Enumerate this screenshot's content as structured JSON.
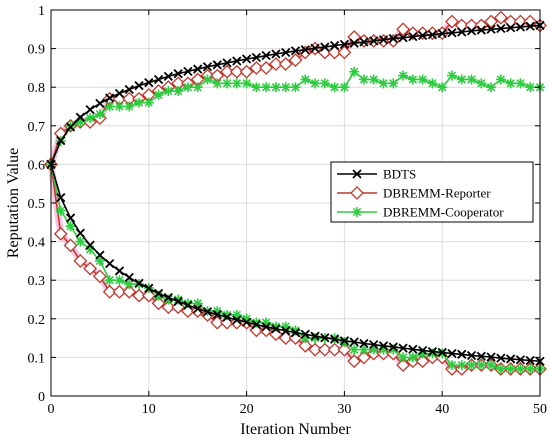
{
  "chart_data": {
    "type": "line",
    "xlabel": "Iteration Number",
    "ylabel": "Reputation Value",
    "xlim": [
      0,
      50
    ],
    "ylim": [
      0,
      1
    ],
    "x_ticks": [
      0,
      10,
      20,
      30,
      40,
      50
    ],
    "y_ticks": [
      0,
      0.1,
      0.2,
      0.3,
      0.4,
      0.5,
      0.6,
      0.7,
      0.8,
      0.9,
      1
    ],
    "grid": true,
    "legend_position": "center-right",
    "series": [
      {
        "name": "BDTS",
        "color": "#000000",
        "marker": "x",
        "x": [
          0,
          1,
          2,
          3,
          4,
          5,
          6,
          7,
          8,
          9,
          10,
          11,
          12,
          13,
          14,
          15,
          16,
          17,
          18,
          19,
          20,
          21,
          22,
          23,
          24,
          25,
          26,
          27,
          28,
          29,
          30,
          31,
          32,
          33,
          34,
          35,
          36,
          37,
          38,
          39,
          40,
          41,
          42,
          43,
          44,
          45,
          46,
          47,
          48,
          49,
          50
        ],
        "y_upper": [
          0.6,
          0.662,
          0.697,
          0.722,
          0.742,
          0.758,
          0.772,
          0.784,
          0.794,
          0.804,
          0.812,
          0.82,
          0.828,
          0.835,
          0.841,
          0.847,
          0.853,
          0.858,
          0.863,
          0.868,
          0.873,
          0.877,
          0.882,
          0.886,
          0.89,
          0.894,
          0.897,
          0.901,
          0.904,
          0.908,
          0.911,
          0.914,
          0.917,
          0.92,
          0.923,
          0.926,
          0.928,
          0.931,
          0.934,
          0.936,
          0.939,
          0.941,
          0.943,
          0.946,
          0.948,
          0.95,
          0.952,
          0.954,
          0.956,
          0.958,
          0.96
        ],
        "y_lower": [
          0.6,
          0.514,
          0.461,
          0.422,
          0.391,
          0.365,
          0.343,
          0.324,
          0.307,
          0.292,
          0.279,
          0.266,
          0.255,
          0.245,
          0.235,
          0.226,
          0.218,
          0.211,
          0.204,
          0.197,
          0.191,
          0.185,
          0.179,
          0.174,
          0.169,
          0.164,
          0.16,
          0.155,
          0.151,
          0.147,
          0.143,
          0.14,
          0.136,
          0.133,
          0.13,
          0.127,
          0.124,
          0.121,
          0.118,
          0.115,
          0.113,
          0.11,
          0.108,
          0.105,
          0.103,
          0.101,
          0.098,
          0.096,
          0.094,
          0.092,
          0.09
        ]
      },
      {
        "name": "DBREMM-Reporter",
        "color": "#c0392b",
        "marker": "diamond",
        "x": [
          0,
          1,
          2,
          3,
          4,
          5,
          6,
          7,
          8,
          9,
          10,
          11,
          12,
          13,
          14,
          15,
          16,
          17,
          18,
          19,
          20,
          21,
          22,
          23,
          24,
          25,
          26,
          27,
          28,
          29,
          30,
          31,
          32,
          33,
          34,
          35,
          36,
          37,
          38,
          39,
          40,
          41,
          42,
          43,
          44,
          45,
          46,
          47,
          48,
          49,
          50
        ],
        "y_upper": [
          0.6,
          0.68,
          0.7,
          0.71,
          0.71,
          0.72,
          0.77,
          0.77,
          0.77,
          0.77,
          0.78,
          0.79,
          0.8,
          0.81,
          0.81,
          0.82,
          0.83,
          0.83,
          0.84,
          0.84,
          0.84,
          0.85,
          0.85,
          0.86,
          0.86,
          0.87,
          0.89,
          0.9,
          0.89,
          0.89,
          0.89,
          0.93,
          0.92,
          0.92,
          0.92,
          0.92,
          0.95,
          0.94,
          0.94,
          0.94,
          0.94,
          0.97,
          0.96,
          0.96,
          0.96,
          0.97,
          0.98,
          0.97,
          0.97,
          0.97,
          0.96
        ],
        "y_lower": [
          0.6,
          0.42,
          0.39,
          0.35,
          0.33,
          0.31,
          0.27,
          0.27,
          0.27,
          0.26,
          0.26,
          0.24,
          0.23,
          0.23,
          0.22,
          0.22,
          0.21,
          0.19,
          0.19,
          0.19,
          0.19,
          0.17,
          0.17,
          0.16,
          0.15,
          0.15,
          0.13,
          0.12,
          0.12,
          0.12,
          0.12,
          0.09,
          0.1,
          0.11,
          0.11,
          0.11,
          0.08,
          0.09,
          0.09,
          0.1,
          0.1,
          0.07,
          0.07,
          0.08,
          0.08,
          0.08,
          0.07,
          0.07,
          0.07,
          0.07,
          0.07
        ]
      },
      {
        "name": "DBREMM-Cooperator",
        "color": "#2ecc40",
        "marker": "star",
        "x": [
          0,
          1,
          2,
          3,
          4,
          5,
          6,
          7,
          8,
          9,
          10,
          11,
          12,
          13,
          14,
          15,
          16,
          17,
          18,
          19,
          20,
          21,
          22,
          23,
          24,
          25,
          26,
          27,
          28,
          29,
          30,
          31,
          32,
          33,
          34,
          35,
          36,
          37,
          38,
          39,
          40,
          41,
          42,
          43,
          44,
          45,
          46,
          47,
          48,
          49,
          50
        ],
        "y_upper": [
          0.6,
          0.66,
          0.7,
          0.71,
          0.72,
          0.73,
          0.75,
          0.75,
          0.75,
          0.76,
          0.76,
          0.78,
          0.79,
          0.79,
          0.8,
          0.8,
          0.82,
          0.81,
          0.81,
          0.81,
          0.81,
          0.8,
          0.8,
          0.8,
          0.8,
          0.8,
          0.82,
          0.81,
          0.81,
          0.8,
          0.8,
          0.84,
          0.82,
          0.82,
          0.81,
          0.81,
          0.83,
          0.82,
          0.82,
          0.81,
          0.8,
          0.83,
          0.82,
          0.82,
          0.81,
          0.8,
          0.82,
          0.81,
          0.81,
          0.8,
          0.8
        ],
        "y_lower": [
          0.6,
          0.48,
          0.44,
          0.4,
          0.38,
          0.35,
          0.3,
          0.3,
          0.29,
          0.29,
          0.28,
          0.26,
          0.25,
          0.25,
          0.24,
          0.24,
          0.22,
          0.22,
          0.21,
          0.21,
          0.2,
          0.19,
          0.19,
          0.18,
          0.18,
          0.17,
          0.15,
          0.15,
          0.15,
          0.15,
          0.14,
          0.12,
          0.12,
          0.12,
          0.12,
          0.12,
          0.1,
          0.1,
          0.11,
          0.11,
          0.11,
          0.08,
          0.08,
          0.08,
          0.08,
          0.08,
          0.07,
          0.07,
          0.07,
          0.07,
          0.07
        ]
      }
    ]
  }
}
